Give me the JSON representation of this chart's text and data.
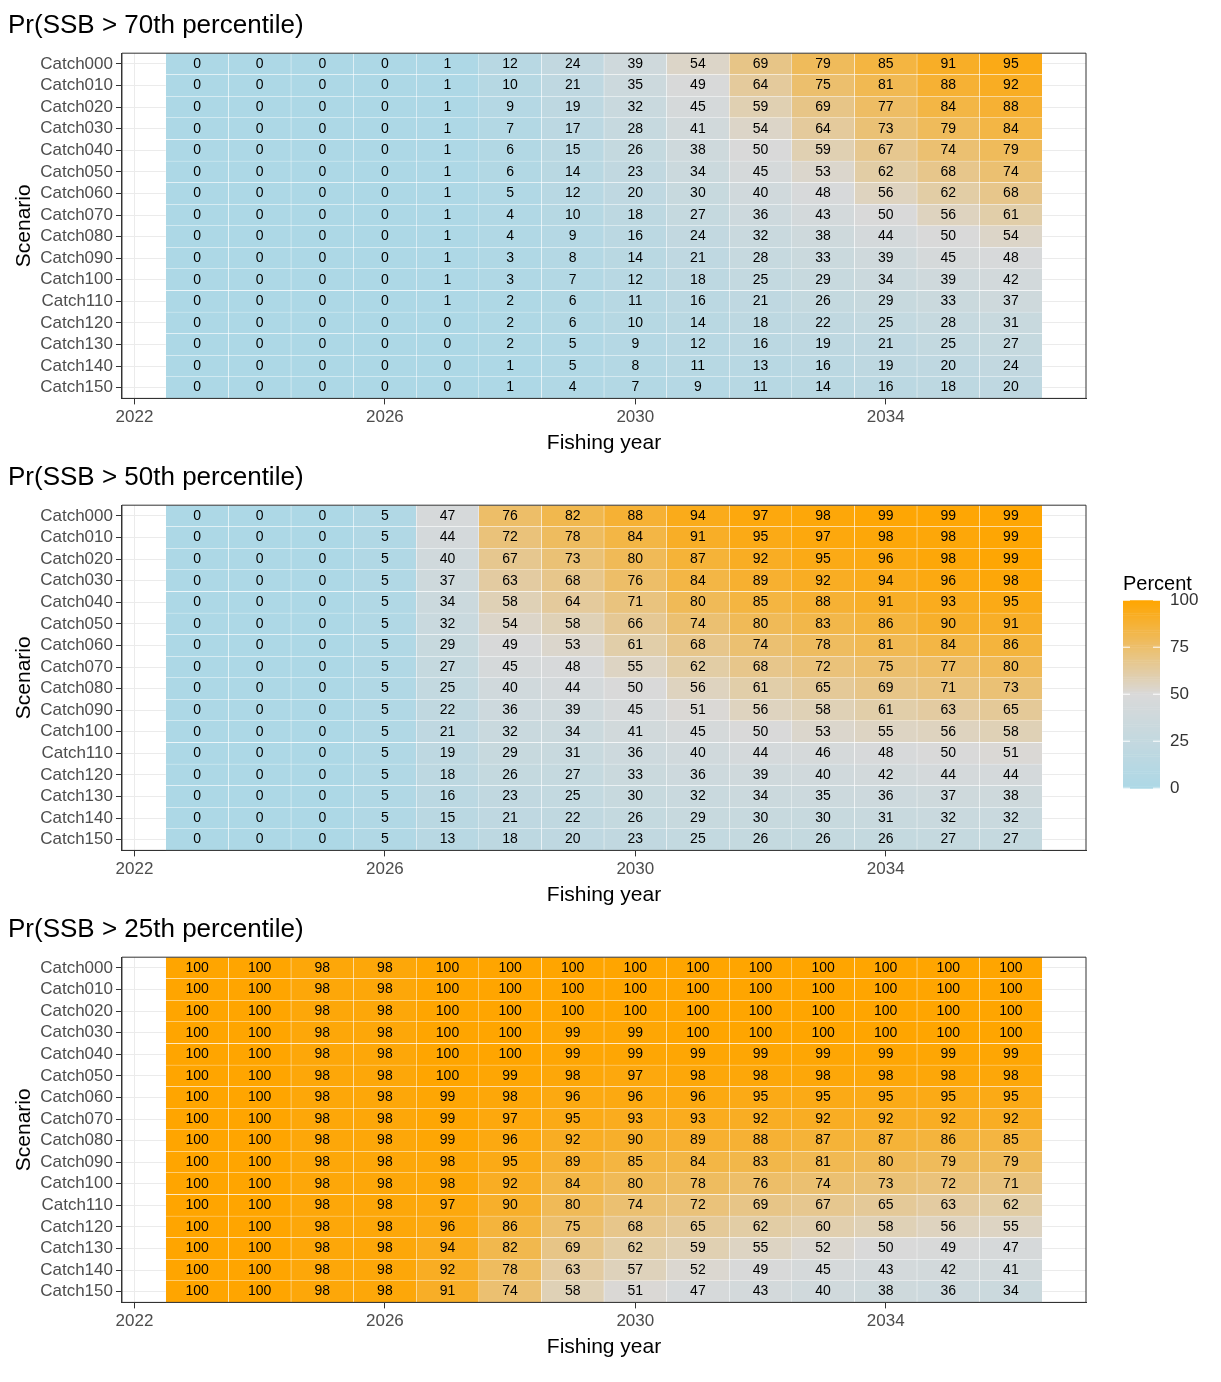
{
  "chart_data": [
    {
      "type": "heatmap",
      "title": "Pr(SSB > 70th percentile)",
      "xlabel": "Fishing year",
      "ylabel": "Scenario",
      "grid": true,
      "data_labels": true,
      "x": [
        2023,
        2024,
        2025,
        2026,
        2027,
        2028,
        2029,
        2030,
        2031,
        2032,
        2033,
        2034,
        2035,
        2036
      ],
      "xlim": [
        2021.8,
        2037.2
      ],
      "xticks": [
        2022,
        2026,
        2030,
        2034
      ],
      "y_categories": [
        "Catch000",
        "Catch010",
        "Catch020",
        "Catch030",
        "Catch040",
        "Catch050",
        "Catch060",
        "Catch070",
        "Catch080",
        "Catch090",
        "Catch100",
        "Catch110",
        "Catch120",
        "Catch130",
        "Catch140",
        "Catch150"
      ],
      "cells": [
        [
          0,
          0,
          0,
          0,
          1,
          12,
          24,
          39,
          54,
          69,
          79,
          85,
          91,
          95
        ],
        [
          0,
          0,
          0,
          0,
          1,
          10,
          21,
          35,
          49,
          64,
          75,
          81,
          88,
          92
        ],
        [
          0,
          0,
          0,
          0,
          1,
          9,
          19,
          32,
          45,
          59,
          69,
          77,
          84,
          88
        ],
        [
          0,
          0,
          0,
          0,
          1,
          7,
          17,
          28,
          41,
          54,
          64,
          73,
          79,
          84
        ],
        [
          0,
          0,
          0,
          0,
          1,
          6,
          15,
          26,
          38,
          50,
          59,
          67,
          74,
          79
        ],
        [
          0,
          0,
          0,
          0,
          1,
          6,
          14,
          23,
          34,
          45,
          53,
          62,
          68,
          74
        ],
        [
          0,
          0,
          0,
          0,
          1,
          5,
          12,
          20,
          30,
          40,
          48,
          56,
          62,
          68
        ],
        [
          0,
          0,
          0,
          0,
          1,
          4,
          10,
          18,
          27,
          36,
          43,
          50,
          56,
          61
        ],
        [
          0,
          0,
          0,
          0,
          1,
          4,
          9,
          16,
          24,
          32,
          38,
          44,
          50,
          54
        ],
        [
          0,
          0,
          0,
          0,
          1,
          3,
          8,
          14,
          21,
          28,
          33,
          39,
          45,
          48
        ],
        [
          0,
          0,
          0,
          0,
          1,
          3,
          7,
          12,
          18,
          25,
          29,
          34,
          39,
          42
        ],
        [
          0,
          0,
          0,
          0,
          1,
          2,
          6,
          11,
          16,
          21,
          26,
          29,
          33,
          37
        ],
        [
          0,
          0,
          0,
          0,
          0,
          2,
          6,
          10,
          14,
          18,
          22,
          25,
          28,
          31
        ],
        [
          0,
          0,
          0,
          0,
          0,
          2,
          5,
          9,
          12,
          16,
          19,
          21,
          25,
          27
        ],
        [
          0,
          0,
          0,
          0,
          0,
          1,
          5,
          8,
          11,
          13,
          16,
          19,
          20,
          24
        ],
        [
          0,
          0,
          0,
          0,
          0,
          1,
          4,
          7,
          9,
          11,
          14,
          16,
          18,
          20
        ]
      ]
    },
    {
      "type": "heatmap",
      "title": "Pr(SSB > 50th percentile)",
      "xlabel": "Fishing year",
      "ylabel": "Scenario",
      "grid": true,
      "data_labels": true,
      "x": [
        2023,
        2024,
        2025,
        2026,
        2027,
        2028,
        2029,
        2030,
        2031,
        2032,
        2033,
        2034,
        2035,
        2036
      ],
      "xlim": [
        2021.8,
        2037.2
      ],
      "xticks": [
        2022,
        2026,
        2030,
        2034
      ],
      "y_categories": [
        "Catch000",
        "Catch010",
        "Catch020",
        "Catch030",
        "Catch040",
        "Catch050",
        "Catch060",
        "Catch070",
        "Catch080",
        "Catch090",
        "Catch100",
        "Catch110",
        "Catch120",
        "Catch130",
        "Catch140",
        "Catch150"
      ],
      "clabel": "Percent",
      "clim": [
        0,
        100
      ],
      "cticks": [
        0,
        25,
        50,
        75,
        100
      ],
      "cells": [
        [
          0,
          0,
          0,
          5,
          47,
          76,
          82,
          88,
          94,
          97,
          98,
          99,
          99,
          99
        ],
        [
          0,
          0,
          0,
          5,
          44,
          72,
          78,
          84,
          91,
          95,
          97,
          98,
          98,
          99
        ],
        [
          0,
          0,
          0,
          5,
          40,
          67,
          73,
          80,
          87,
          92,
          95,
          96,
          98,
          99
        ],
        [
          0,
          0,
          0,
          5,
          37,
          63,
          68,
          76,
          84,
          89,
          92,
          94,
          96,
          98
        ],
        [
          0,
          0,
          0,
          5,
          34,
          58,
          64,
          71,
          80,
          85,
          88,
          91,
          93,
          95
        ],
        [
          0,
          0,
          0,
          5,
          32,
          54,
          58,
          66,
          74,
          80,
          83,
          86,
          90,
          91
        ],
        [
          0,
          0,
          0,
          5,
          29,
          49,
          53,
          61,
          68,
          74,
          78,
          81,
          84,
          86
        ],
        [
          0,
          0,
          0,
          5,
          27,
          45,
          48,
          55,
          62,
          68,
          72,
          75,
          77,
          80
        ],
        [
          0,
          0,
          0,
          5,
          25,
          40,
          44,
          50,
          56,
          61,
          65,
          69,
          71,
          73
        ],
        [
          0,
          0,
          0,
          5,
          22,
          36,
          39,
          45,
          51,
          56,
          58,
          61,
          63,
          65
        ],
        [
          0,
          0,
          0,
          5,
          21,
          32,
          34,
          41,
          45,
          50,
          53,
          55,
          56,
          58
        ],
        [
          0,
          0,
          0,
          5,
          19,
          29,
          31,
          36,
          40,
          44,
          46,
          48,
          50,
          51
        ],
        [
          0,
          0,
          0,
          5,
          18,
          26,
          27,
          33,
          36,
          39,
          40,
          42,
          44,
          44
        ],
        [
          0,
          0,
          0,
          5,
          16,
          23,
          25,
          30,
          32,
          34,
          35,
          36,
          37,
          38
        ],
        [
          0,
          0,
          0,
          5,
          15,
          21,
          22,
          26,
          29,
          30,
          30,
          31,
          32,
          32
        ],
        [
          0,
          0,
          0,
          5,
          13,
          18,
          20,
          23,
          25,
          26,
          26,
          26,
          27,
          27
        ]
      ]
    },
    {
      "type": "heatmap",
      "title": "Pr(SSB > 25th percentile)",
      "xlabel": "Fishing year",
      "ylabel": "Scenario",
      "grid": true,
      "data_labels": true,
      "x": [
        2023,
        2024,
        2025,
        2026,
        2027,
        2028,
        2029,
        2030,
        2031,
        2032,
        2033,
        2034,
        2035,
        2036
      ],
      "xlim": [
        2021.8,
        2037.2
      ],
      "xticks": [
        2022,
        2026,
        2030,
        2034
      ],
      "y_categories": [
        "Catch000",
        "Catch010",
        "Catch020",
        "Catch030",
        "Catch040",
        "Catch050",
        "Catch060",
        "Catch070",
        "Catch080",
        "Catch090",
        "Catch100",
        "Catch110",
        "Catch120",
        "Catch130",
        "Catch140",
        "Catch150"
      ],
      "cells": [
        [
          100,
          100,
          98,
          98,
          100,
          100,
          100,
          100,
          100,
          100,
          100,
          100,
          100,
          100
        ],
        [
          100,
          100,
          98,
          98,
          100,
          100,
          100,
          100,
          100,
          100,
          100,
          100,
          100,
          100
        ],
        [
          100,
          100,
          98,
          98,
          100,
          100,
          100,
          100,
          100,
          100,
          100,
          100,
          100,
          100
        ],
        [
          100,
          100,
          98,
          98,
          100,
          100,
          99,
          99,
          100,
          100,
          100,
          100,
          100,
          100
        ],
        [
          100,
          100,
          98,
          98,
          100,
          100,
          99,
          99,
          99,
          99,
          99,
          99,
          99,
          99
        ],
        [
          100,
          100,
          98,
          98,
          100,
          99,
          98,
          97,
          98,
          98,
          98,
          98,
          98,
          98
        ],
        [
          100,
          100,
          98,
          98,
          99,
          98,
          96,
          96,
          96,
          95,
          95,
          95,
          95,
          95
        ],
        [
          100,
          100,
          98,
          98,
          99,
          97,
          95,
          93,
          93,
          92,
          92,
          92,
          92,
          92
        ],
        [
          100,
          100,
          98,
          98,
          99,
          96,
          92,
          90,
          89,
          88,
          87,
          87,
          86,
          85
        ],
        [
          100,
          100,
          98,
          98,
          98,
          95,
          89,
          85,
          84,
          83,
          81,
          80,
          79,
          79
        ],
        [
          100,
          100,
          98,
          98,
          98,
          92,
          84,
          80,
          78,
          76,
          74,
          73,
          72,
          71
        ],
        [
          100,
          100,
          98,
          98,
          97,
          90,
          80,
          74,
          72,
          69,
          67,
          65,
          63,
          62
        ],
        [
          100,
          100,
          98,
          98,
          96,
          86,
          75,
          68,
          65,
          62,
          60,
          58,
          56,
          55
        ],
        [
          100,
          100,
          98,
          98,
          94,
          82,
          69,
          62,
          59,
          55,
          52,
          50,
          49,
          47
        ],
        [
          100,
          100,
          98,
          98,
          92,
          78,
          63,
          57,
          52,
          49,
          45,
          43,
          42,
          41
        ],
        [
          100,
          100,
          98,
          98,
          91,
          74,
          58,
          51,
          47,
          43,
          40,
          38,
          36,
          34
        ]
      ]
    }
  ]
}
